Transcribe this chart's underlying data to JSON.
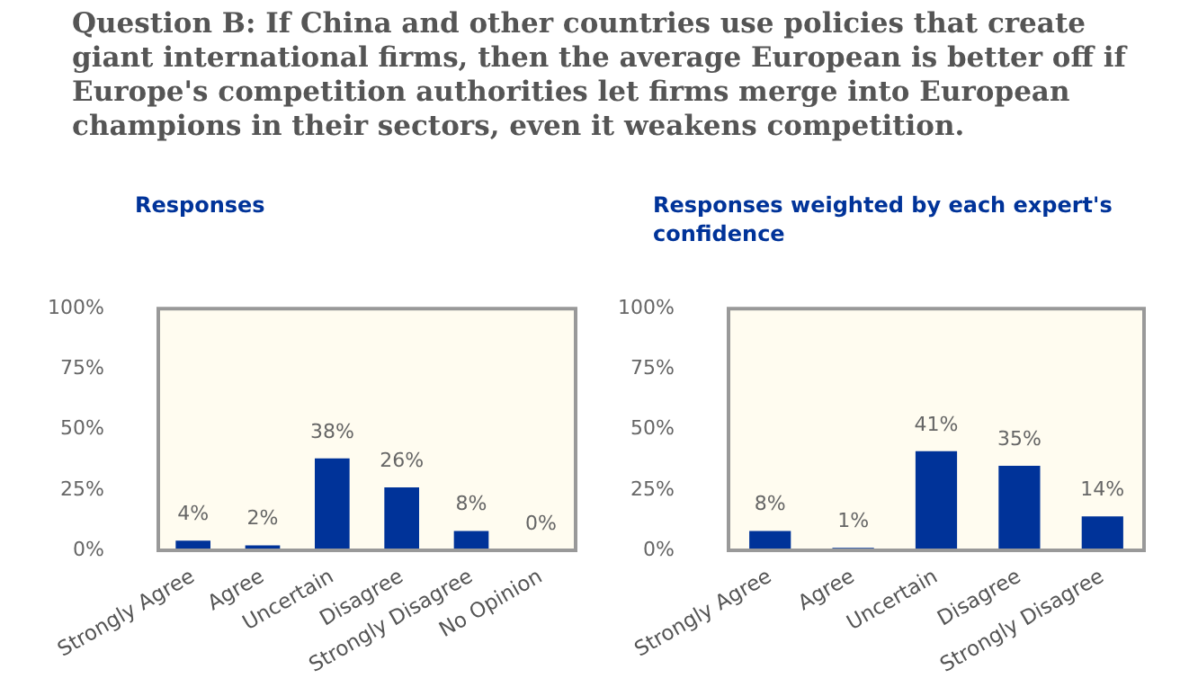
{
  "chart_data": [
    {
      "type": "bar",
      "title": "Responses",
      "annotations": [
        "Question B: If China and other countries use policies that create giant international firms, then the average European is better off if Europe's competition authorities let firms merge into European champions in their sectors, even it weakens competition."
      ],
      "categories": [
        "Strongly Agree",
        "Agree",
        "Uncertain",
        "Disagree",
        "Strongly Disagree",
        "No Opinion"
      ],
      "values": [
        4,
        2,
        38,
        26,
        8,
        0
      ],
      "value_labels": [
        "4%",
        "2%",
        "38%",
        "26%",
        "8%",
        "0%"
      ],
      "color": "#003399",
      "ylim": [
        0,
        100
      ],
      "yticks": [
        {
          "value": 0,
          "label": "0%"
        },
        {
          "value": 25,
          "label": "25%"
        },
        {
          "value": 50,
          "label": "50%"
        },
        {
          "value": 75,
          "label": "75%"
        },
        {
          "value": 100,
          "label": "100%"
        }
      ],
      "legend": false
    },
    {
      "type": "bar",
      "title": "Responses weighted by each expert's confidence",
      "categories": [
        "Strongly Agree",
        "Agree",
        "Uncertain",
        "Disagree",
        "Strongly Disagree"
      ],
      "values": [
        8,
        1,
        41,
        35,
        14
      ],
      "value_labels": [
        "8%",
        "1%",
        "41%",
        "35%",
        "14%"
      ],
      "color": "#003399",
      "ylim": [
        0,
        100
      ],
      "yticks": [
        {
          "value": 0,
          "label": "0%"
        },
        {
          "value": 25,
          "label": "25%"
        },
        {
          "value": 50,
          "label": "50%"
        },
        {
          "value": 75,
          "label": "75%"
        },
        {
          "value": 100,
          "label": "100%"
        }
      ],
      "legend": false
    }
  ]
}
